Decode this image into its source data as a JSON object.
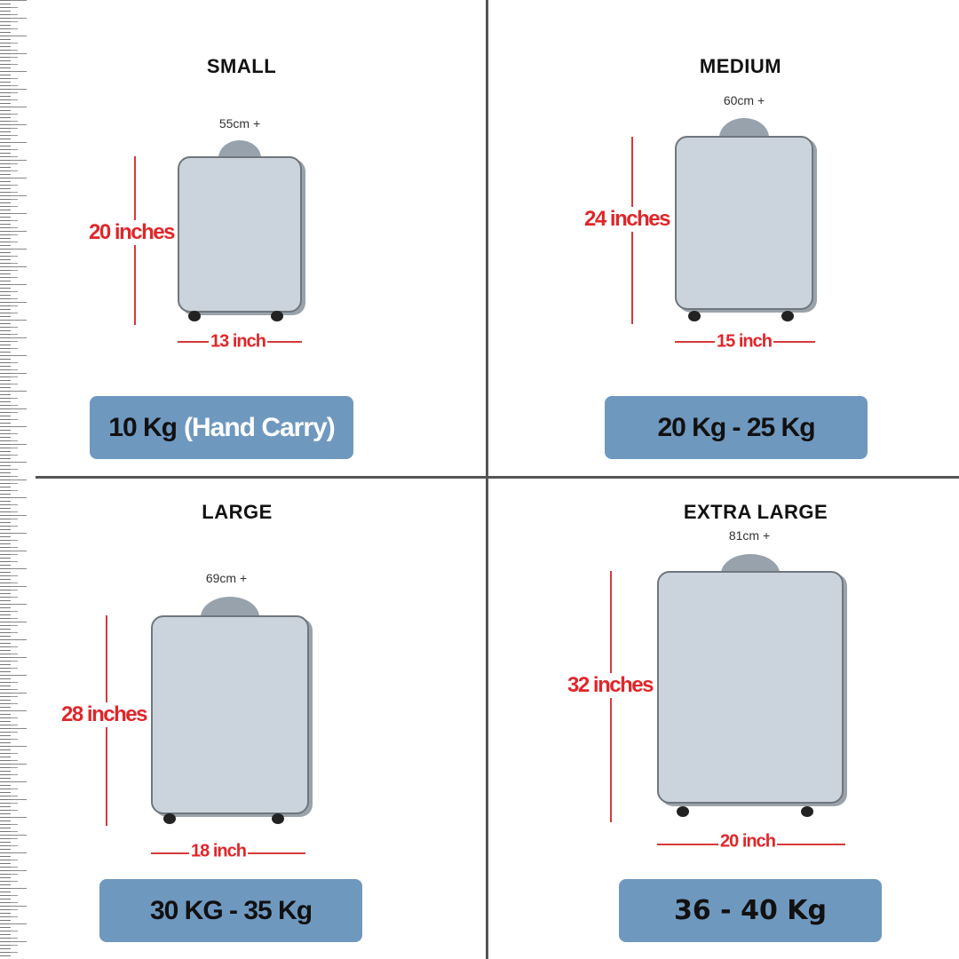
{
  "colors": {
    "badge": "#6f98bf",
    "dimension": "#e0262a",
    "suitcase": "#cbd4dc"
  },
  "panels": [
    {
      "title": "SMALL",
      "cm": "55cm +",
      "height": "20 inches",
      "width": "13 inch",
      "weight": "10 Kg",
      "weight_note": "(Hand Carry)"
    },
    {
      "title": "MEDIUM",
      "cm": "60cm +",
      "height": "24 inches",
      "width": "15 inch",
      "weight": "20 Kg - 25 Kg"
    },
    {
      "title": "LARGE",
      "cm": "69cm +",
      "height": "28 inches",
      "width": "18 inch",
      "weight": "30 KG - 35 Kg"
    },
    {
      "title": "EXTRA LARGE",
      "cm": "81cm +",
      "height": "32 inches",
      "width": "20 inch",
      "weight": "36 - 40 Kg"
    }
  ]
}
